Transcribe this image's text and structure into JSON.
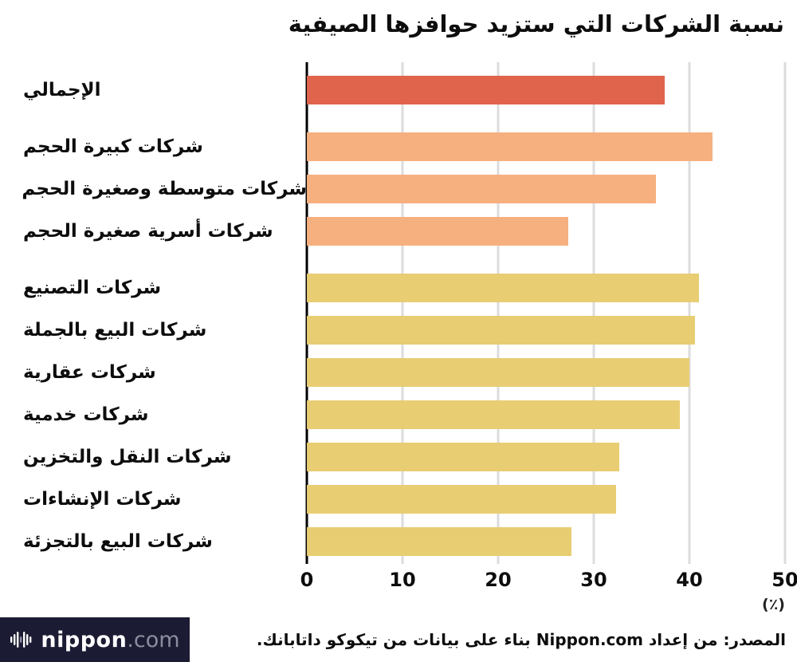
{
  "title": "نسبة الشركات التي ستزيد حوافزها الصيفية",
  "chart_data": {
    "type": "bar",
    "orientation": "horizontal",
    "title": "نسبة الشركات التي ستزيد حوافزها الصيفية",
    "xlabel": "(٪)",
    "ylabel": "",
    "xlim": [
      0,
      50
    ],
    "xticks": [
      0,
      10,
      20,
      30,
      40,
      50
    ],
    "unit_label": "(٪)",
    "grid": true,
    "groups": [
      {
        "name": "total",
        "color": "#e0644b",
        "items": [
          {
            "label": "الإجمالي",
            "value": 37.4
          }
        ]
      },
      {
        "name": "company-size",
        "color": "#f6b07f",
        "items": [
          {
            "label": "شركات كبيرة الحجم",
            "value": 42.4
          },
          {
            "label": "شركات متوسطة وصغيرة الحجم",
            "value": 36.5
          },
          {
            "label": "شركات أسرية صغيرة الحجم",
            "value": 27.3
          }
        ]
      },
      {
        "name": "industry",
        "color": "#e8cd73",
        "items": [
          {
            "label": "شركات التصنيع",
            "value": 41.0
          },
          {
            "label": "شركات البيع بالجملة",
            "value": 40.6
          },
          {
            "label": "شركات عقارية",
            "value": 40.0
          },
          {
            "label": "شركات خدمية",
            "value": 39.0
          },
          {
            "label": "شركات النقل والتخزين",
            "value": 32.7
          },
          {
            "label": "شركات الإنشاءات",
            "value": 32.3
          },
          {
            "label": "شركات البيع بالتجزئة",
            "value": 27.7
          }
        ]
      }
    ],
    "colors": {
      "total_bar": "#e0644b",
      "size_bars": "#f6b07f",
      "industry_bars": "#e8cd73",
      "gridline": "#dcdcdc",
      "axis": "#000000",
      "footer_bg": "#1b1b33"
    }
  },
  "footer": {
    "logo_text": "nippon",
    "logo_suffix": ".com",
    "source": "المصدر: من إعداد Nippon.com بناء على بيانات من تيكوكو داتابانك."
  }
}
